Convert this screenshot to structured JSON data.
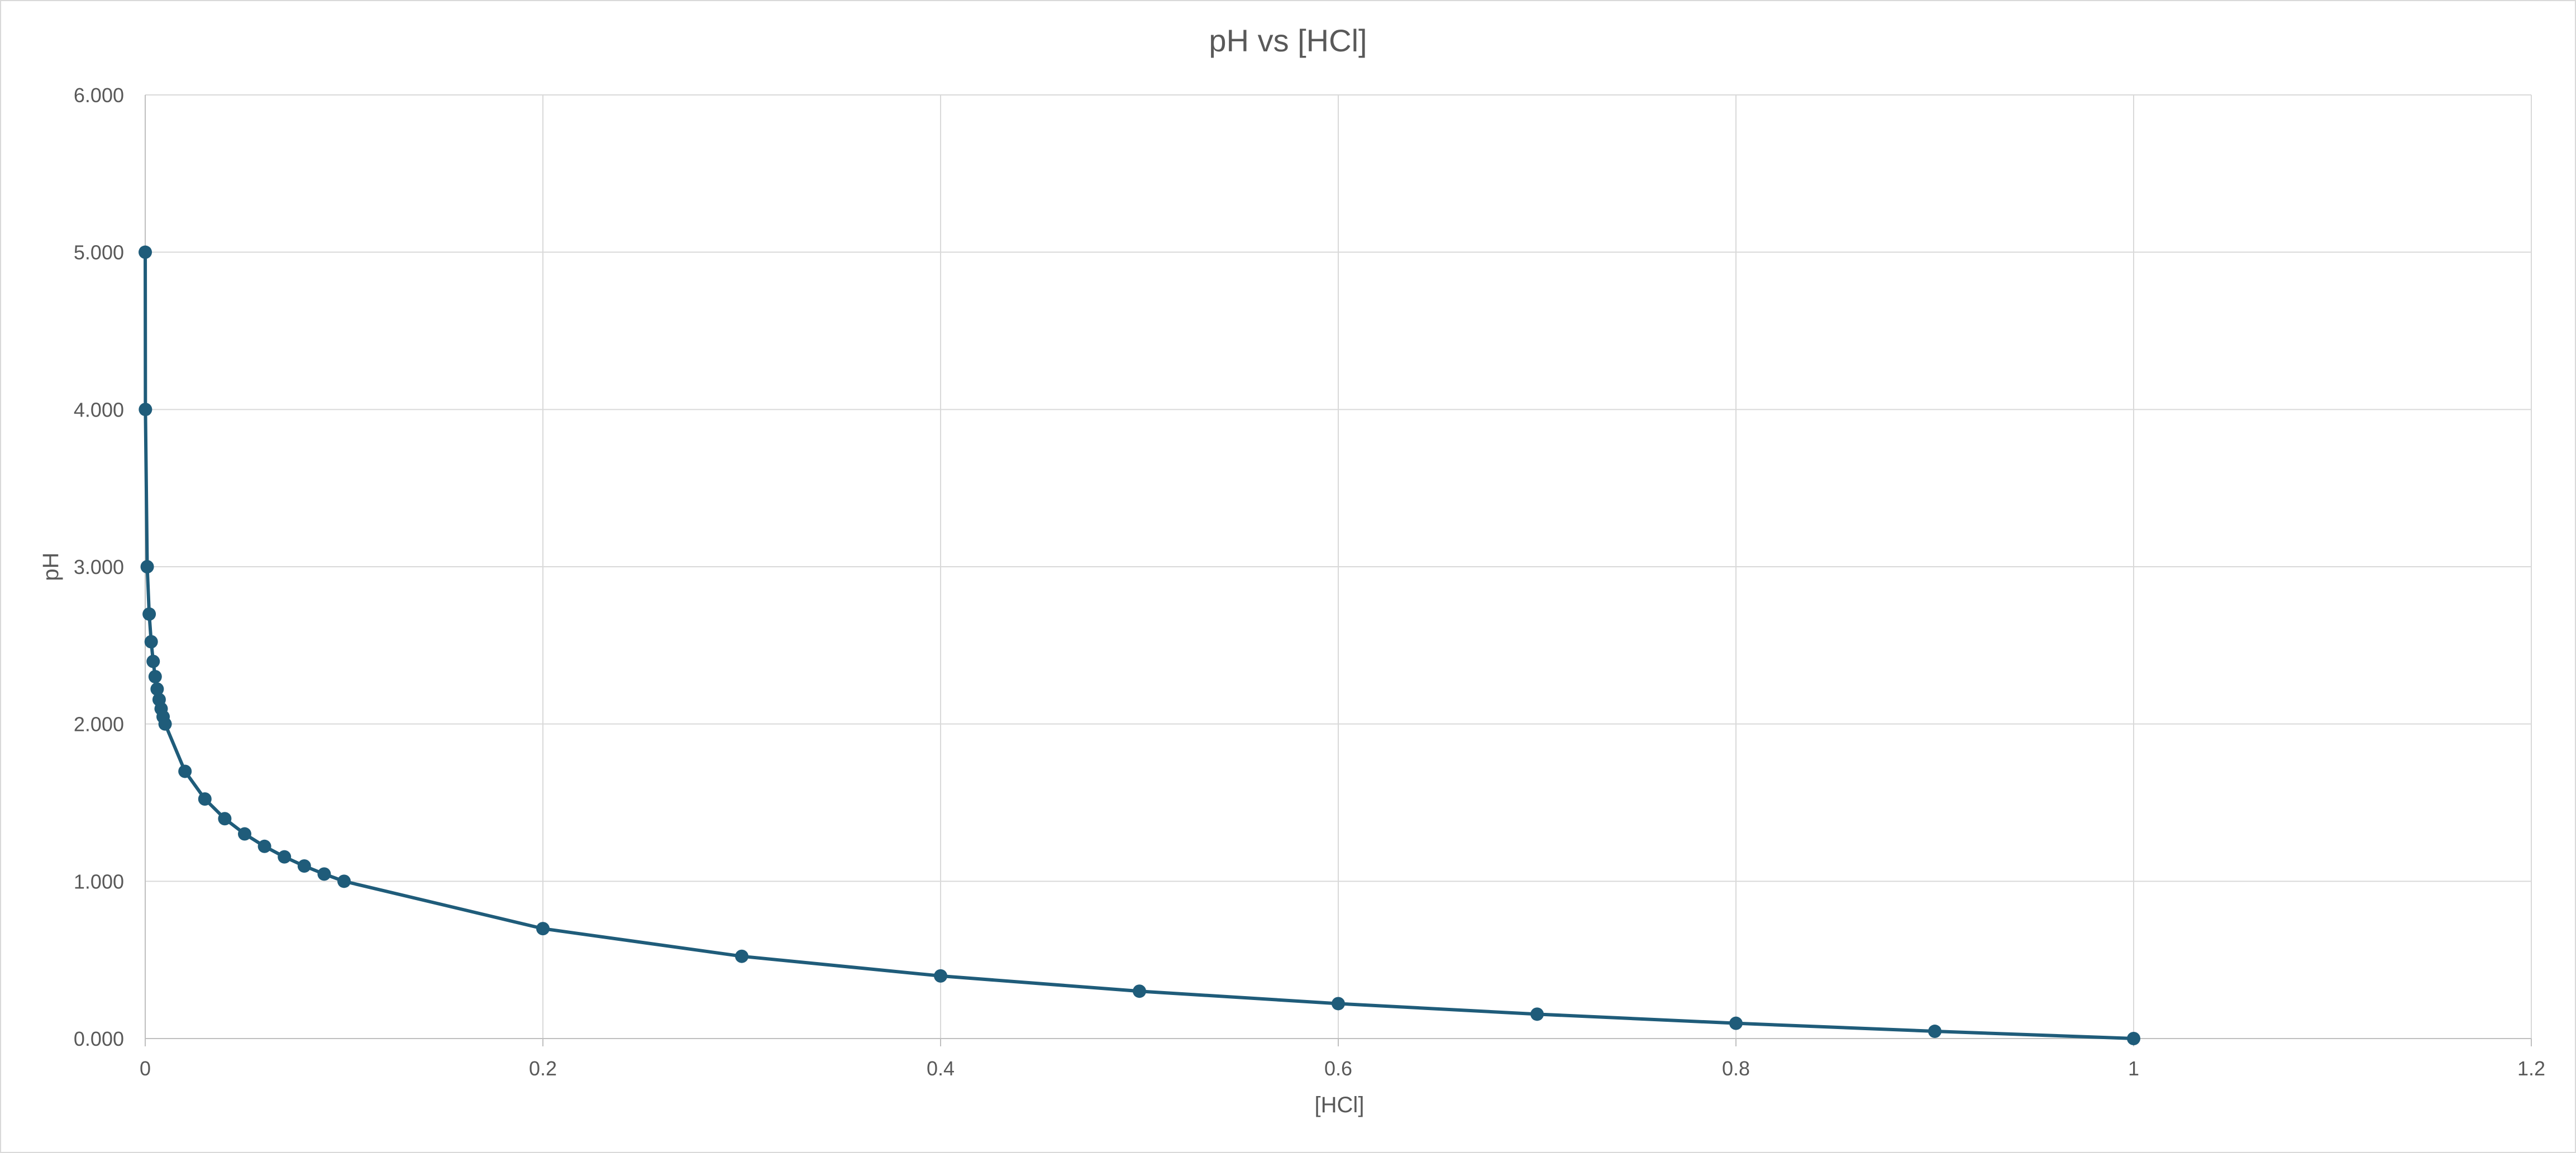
{
  "chart_data": {
    "type": "scatter",
    "title": "pH vs [HCl]",
    "xlabel": "[HCl]",
    "ylabel": "pH",
    "xlim": [
      0,
      1.2
    ],
    "ylim": [
      0,
      6
    ],
    "x_ticks": [
      "0",
      "0.2",
      "0.4",
      "0.6",
      "0.8",
      "1",
      "1.2"
    ],
    "y_ticks": [
      "0.000",
      "1.000",
      "2.000",
      "3.000",
      "4.000",
      "5.000",
      "6.000"
    ],
    "grid": true,
    "legend": "none",
    "series_color": "#1f5c7a",
    "series": [
      {
        "x": [
          1e-05,
          0.0001,
          0.001,
          0.002,
          0.003,
          0.004,
          0.005,
          0.006,
          0.007,
          0.008,
          0.009,
          0.01,
          0.02,
          0.03,
          0.04,
          0.05,
          0.06,
          0.07,
          0.08,
          0.09,
          0.1,
          0.2,
          0.3,
          0.4,
          0.5,
          0.6,
          0.7,
          0.8,
          0.9,
          1.0
        ],
        "y": [
          5.0,
          4.0,
          3.0,
          2.699,
          2.523,
          2.398,
          2.301,
          2.222,
          2.155,
          2.097,
          2.046,
          2.0,
          1.699,
          1.523,
          1.398,
          1.301,
          1.222,
          1.155,
          1.097,
          1.046,
          1.0,
          0.699,
          0.523,
          0.398,
          0.301,
          0.222,
          0.155,
          0.097,
          0.046,
          0.0
        ]
      }
    ]
  }
}
